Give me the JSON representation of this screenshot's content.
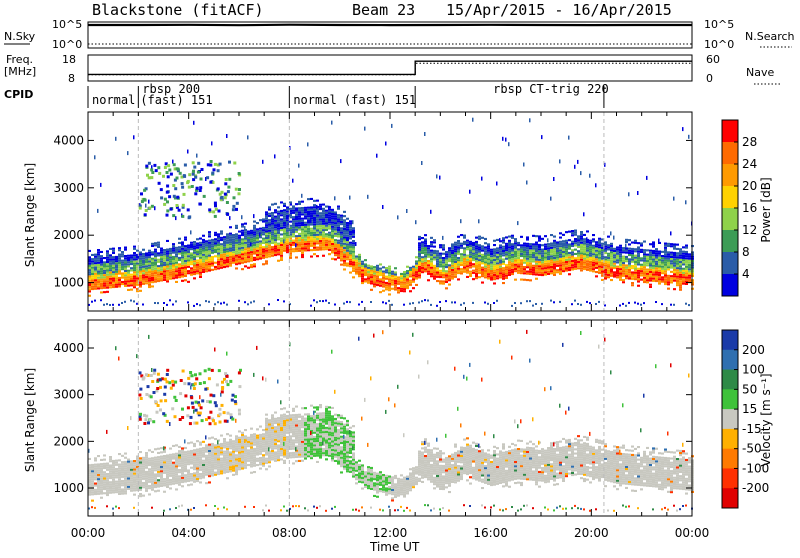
{
  "header": {
    "title": "Blackstone (fitACF)",
    "beam": "Beam 23",
    "date_range": "15/Apr/2015 - 16/Apr/2015"
  },
  "chart_data": [
    {
      "type": "line",
      "panel": "nsky-nsearch",
      "ylabel_left": "N.Sky",
      "ylabel_right": "N.Search",
      "left_ticks": [
        "10^5",
        "10^0"
      ],
      "right_ticks": [
        "10^5",
        "10^0"
      ],
      "scale": "log",
      "series": [
        {
          "name": "N.Sky",
          "style": "solid",
          "x": [
            0,
            2,
            4,
            6,
            8,
            10,
            12,
            14,
            16,
            18,
            20,
            22,
            24
          ],
          "values": [
            100000,
            100000,
            110000,
            90000,
            120000,
            100000,
            95000,
            100000,
            110000,
            100000,
            95000,
            100000,
            100000
          ]
        },
        {
          "name": "N.Search",
          "style": "dotted",
          "x": [
            0,
            2,
            4,
            6,
            8,
            10,
            12,
            14,
            16,
            18,
            20,
            22,
            24
          ],
          "values": [
            3,
            3,
            3,
            3,
            3,
            3,
            3,
            3,
            3,
            3,
            3,
            3,
            3
          ]
        }
      ]
    },
    {
      "type": "line",
      "panel": "freq-nave",
      "ylabel_left": "Freq.\n[MHz]",
      "ylabel_right": "Nave",
      "left_ticks": [
        18,
        8
      ],
      "right_ticks": [
        60,
        0
      ],
      "series": [
        {
          "name": "Freq.",
          "style": "solid",
          "x": [
            0,
            13.0,
            13.0,
            24
          ],
          "values": [
            10.2,
            10.2,
            16.5,
            16.5
          ]
        },
        {
          "name": "Nave",
          "style": "dotted",
          "x": [
            0,
            13.0,
            13.0,
            24
          ],
          "values": [
            12,
            12,
            45,
            45
          ]
        }
      ]
    },
    {
      "type": "table",
      "panel": "cpid",
      "label": "CPID",
      "segments": [
        {
          "start": 0.0,
          "end": 2.0,
          "label": "normal"
        },
        {
          "start": 2.0,
          "end": 8.0,
          "label": "rbsp 200\n(fast) 151"
        },
        {
          "start": 8.0,
          "end": 13.0,
          "label": "normal (fast) 151"
        },
        {
          "start": 13.0,
          "end": 20.5,
          "label": "rbsp CT-trig 220"
        },
        {
          "start": 20.5,
          "end": 24.0,
          "label": ""
        }
      ]
    },
    {
      "type": "heatmap",
      "panel": "power",
      "xlabel": "",
      "ylabel": "Slant Range [km]",
      "x_range": [
        0,
        24
      ],
      "ylim": [
        400,
        4600
      ],
      "y_ticks": [
        1000,
        2000,
        3000,
        4000
      ],
      "colorbar_label": "Power [dB]",
      "colorbar_ticks": [
        28,
        24,
        20,
        16,
        12,
        8,
        4
      ],
      "colorbar_colors": [
        "#ff0000",
        "#ff6a00",
        "#ff9a00",
        "#ffd200",
        "#8fd24a",
        "#3c9c56",
        "#2a5ca8",
        "#0000e0"
      ],
      "main_echo_band_center_km": [
        {
          "t": 0,
          "r": 950
        },
        {
          "t": 2,
          "r": 1050
        },
        {
          "t": 4,
          "r": 1250
        },
        {
          "t": 6,
          "r": 1500
        },
        {
          "t": 8,
          "r": 1750
        },
        {
          "t": 9.5,
          "r": 1800
        },
        {
          "t": 11,
          "r": 1100
        },
        {
          "t": 12.5,
          "r": 900
        },
        {
          "t": 13.3,
          "r": 1350
        },
        {
          "t": 14,
          "r": 1050
        },
        {
          "t": 15,
          "r": 1350
        },
        {
          "t": 16,
          "r": 1150
        },
        {
          "t": 17,
          "r": 1300
        },
        {
          "t": 18,
          "r": 1250
        },
        {
          "t": 19.5,
          "r": 1400
        },
        {
          "t": 21,
          "r": 1200
        },
        {
          "t": 24,
          "r": 1050
        }
      ]
    },
    {
      "type": "heatmap",
      "panel": "velocity",
      "xlabel": "Time UT",
      "ylabel": "Slant Range [km]",
      "x_range": [
        0,
        24
      ],
      "x_ticks": [
        "00:00",
        "04:00",
        "08:00",
        "12:00",
        "16:00",
        "20:00",
        "00:00"
      ],
      "ylim": [
        400,
        4600
      ],
      "y_ticks": [
        1000,
        2000,
        3000,
        4000
      ],
      "colorbar_label": "Velocity [m s⁻¹]",
      "colorbar_ticks": [
        200,
        100,
        50,
        15,
        -15,
        -50,
        -100,
        -200
      ],
      "colorbar_colors": [
        "#1a3aa8",
        "#2f6fb0",
        "#2e8a47",
        "#3fc23a",
        "#c8c8c0",
        "#ffb000",
        "#ff7a00",
        "#ff3000",
        "#e00000"
      ]
    }
  ]
}
